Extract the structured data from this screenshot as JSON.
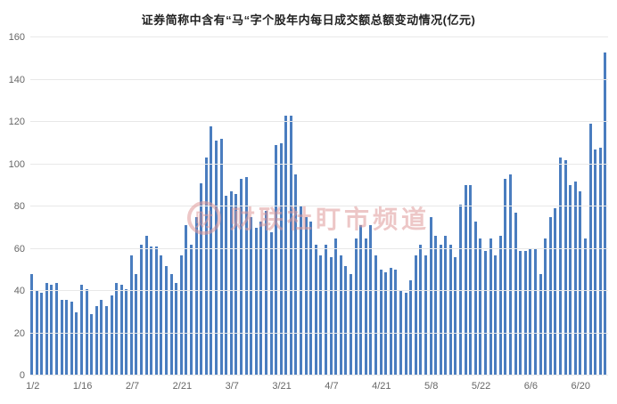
{
  "title": "证券简称中含有“马“字个股年内每日成交额总额变动情况(亿元)",
  "watermark": {
    "logo_glyph": "财",
    "text": "财联社盯市频道"
  },
  "chart_data": {
    "type": "bar",
    "title": "证券简称中含有“马“字个股年内每日成交额总额变动情况(亿元)",
    "xlabel": "",
    "ylabel": "",
    "ylim": [
      0,
      160
    ],
    "yticks": [
      0,
      20,
      40,
      60,
      80,
      100,
      120,
      140,
      160
    ],
    "grid": true,
    "legend": "none",
    "bar_color": "#4a7dbf",
    "x_tick_labels": [
      "1/2",
      "1/16",
      "2/7",
      "2/21",
      "3/7",
      "3/21",
      "4/7",
      "4/21",
      "5/8",
      "5/22",
      "6/6",
      "6/20"
    ],
    "x_tick_every": 10,
    "values": [
      48,
      40,
      39,
      44,
      43,
      44,
      36,
      36,
      35,
      30,
      43,
      41,
      29,
      33,
      36,
      33,
      38,
      44,
      43,
      41,
      57,
      48,
      62,
      66,
      61,
      61,
      57,
      52,
      48,
      44,
      57,
      71,
      62,
      75,
      91,
      103,
      118,
      111,
      112,
      85,
      87,
      86,
      93,
      94,
      75,
      70,
      73,
      78,
      68,
      109,
      110,
      123,
      123,
      95,
      80,
      75,
      73,
      62,
      57,
      62,
      56,
      65,
      57,
      52,
      48,
      65,
      71,
      65,
      71,
      57,
      50,
      49,
      51,
      50,
      40,
      39,
      45,
      57,
      62,
      57,
      75,
      66,
      62,
      66,
      62,
      56,
      81,
      90,
      90,
      73,
      65,
      59,
      65,
      57,
      66,
      93,
      95,
      77,
      59,
      59,
      60,
      60,
      48,
      65,
      75,
      79,
      103,
      102,
      90,
      92,
      87,
      65,
      119,
      107,
      108,
      153
    ]
  }
}
